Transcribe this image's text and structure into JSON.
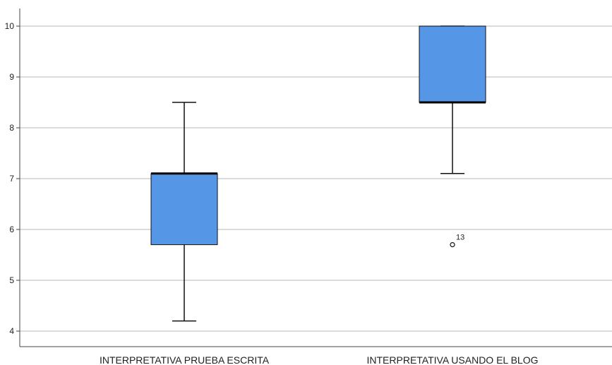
{
  "chart_data": {
    "type": "boxplot",
    "categories": [
      "INTERPRETATIVA PRUEBA ESCRITA",
      "INTERPRETATIVA USANDO EL BLOG"
    ],
    "series": [
      {
        "category": "INTERPRETATIVA PRUEBA ESCRITA",
        "min": 4.2,
        "q1": 5.7,
        "median": 7.1,
        "q3": 7.1,
        "max": 8.5,
        "outliers": []
      },
      {
        "category": "INTERPRETATIVA USANDO EL BLOG",
        "min": 7.1,
        "q1": 8.5,
        "median": 8.5,
        "q3": 10,
        "max": 10,
        "outliers": [
          {
            "value": 5.7,
            "label": "13"
          }
        ]
      }
    ],
    "y_ticks": [
      4,
      5,
      6,
      7,
      8,
      9,
      10
    ],
    "ylim": [
      3.7,
      10.35
    ],
    "grid": true,
    "box_color": "#5596E6",
    "title": "",
    "xlabel": "",
    "ylabel": ""
  }
}
